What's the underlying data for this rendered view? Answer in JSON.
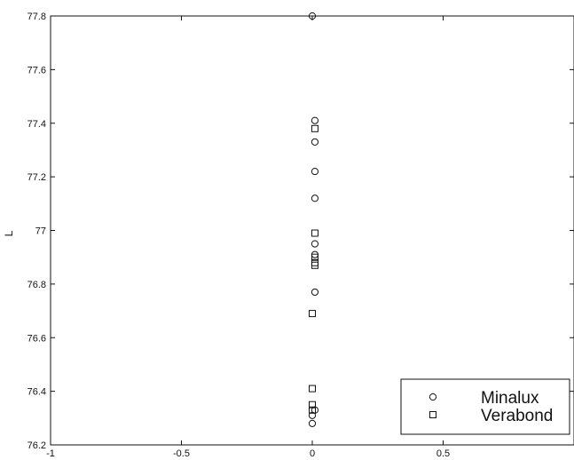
{
  "chart_data": {
    "type": "scatter",
    "title": "",
    "xlabel": "",
    "ylabel": "L",
    "xlim": [
      -1,
      1
    ],
    "ylim": [
      76.2,
      77.8
    ],
    "xticks": [
      -1,
      -0.5,
      0,
      0.5
    ],
    "xtick_labels": [
      "-1",
      "-0.5",
      "0",
      "0.5"
    ],
    "yticks": [
      76.2,
      76.4,
      76.6,
      76.8,
      77,
      77.2,
      77.4,
      77.6,
      77.8
    ],
    "ytick_labels": [
      "76.2",
      "76.4",
      "76.6",
      "76.8",
      "77",
      "77.2",
      "77.4",
      "77.6",
      "77.8"
    ],
    "grid": false,
    "legend": "bottom-right",
    "series": [
      {
        "name": "Minalux",
        "marker": "circle",
        "x": [
          0,
          0.01,
          0.01,
          0.01,
          0.01,
          0.01,
          0.01,
          0.01,
          0.01,
          0,
          0
        ],
        "y": [
          77.8,
          77.41,
          77.33,
          77.22,
          77.12,
          76.95,
          76.91,
          76.77,
          76.33,
          76.31,
          76.28
        ]
      },
      {
        "name": "Verabond",
        "marker": "square",
        "x": [
          0.01,
          0.01,
          0.01,
          0.01,
          0.01,
          0,
          0,
          0,
          0
        ],
        "y": [
          77.38,
          76.99,
          76.9,
          76.88,
          76.87,
          76.69,
          76.41,
          76.35,
          76.33
        ]
      }
    ],
    "colors": {
      "axes": "#111111",
      "markers": "#111111",
      "background": "#ffffff"
    }
  }
}
